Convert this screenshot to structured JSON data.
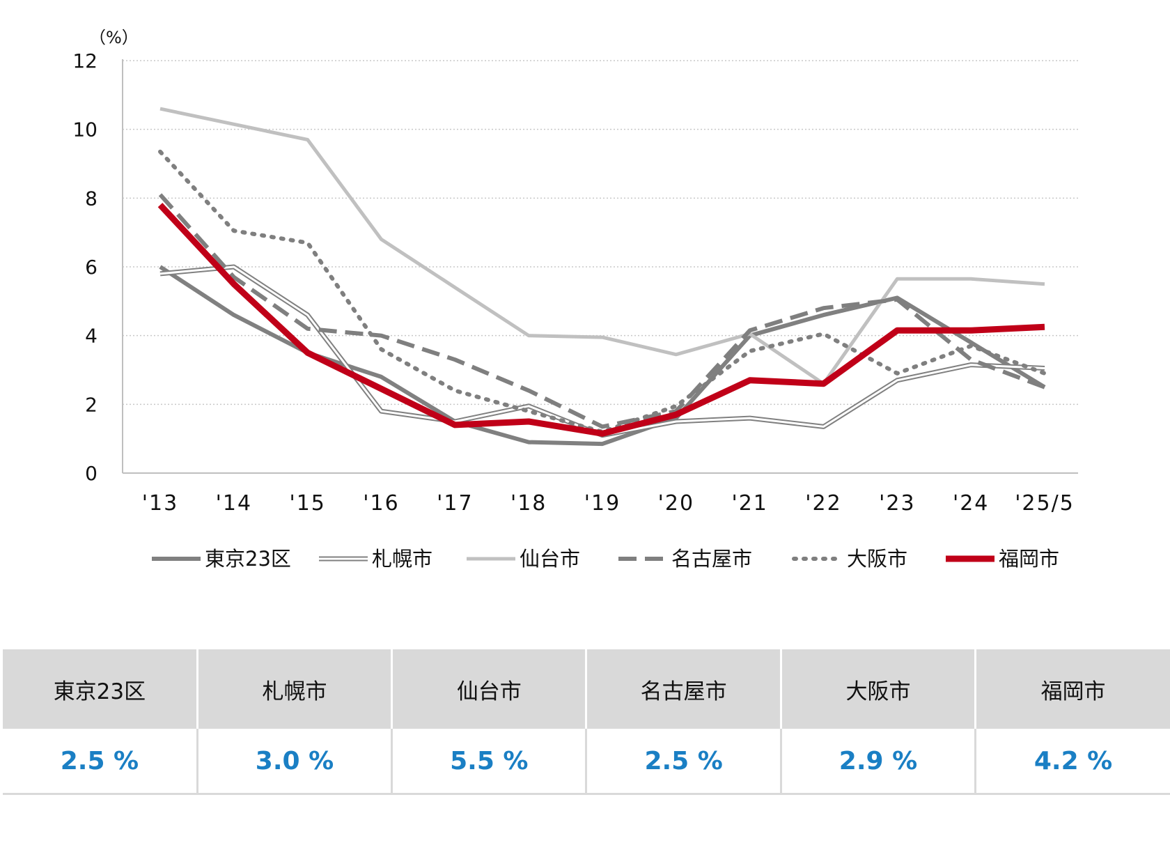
{
  "chart_data": {
    "type": "line",
    "unit_label": "（%）",
    "x": [
      "'13",
      "'14",
      "'15",
      "'16",
      "'17",
      "'18",
      "'19",
      "'20",
      "'21",
      "'22",
      "'23",
      "'24",
      "'25/5"
    ],
    "ylim": [
      0,
      12
    ],
    "yticks": [
      0,
      2,
      4,
      6,
      8,
      10,
      12
    ],
    "grid": "horizontal-dotted",
    "legend_position": "bottom",
    "series": [
      {
        "name": "東京23区",
        "color": "#808080",
        "style": "solid-thick",
        "values": [
          6.0,
          4.6,
          3.5,
          2.8,
          1.5,
          0.9,
          0.85,
          1.6,
          4.0,
          4.6,
          5.1,
          3.8,
          2.5
        ]
      },
      {
        "name": "札幌市",
        "color": "#808080",
        "style": "double",
        "values": [
          5.8,
          6.0,
          4.6,
          1.8,
          1.5,
          1.95,
          1.1,
          1.5,
          1.6,
          1.35,
          2.7,
          3.15,
          3.05
        ]
      },
      {
        "name": "仙台市",
        "color": "#c0c0c0",
        "style": "solid",
        "values": [
          10.6,
          10.15,
          9.7,
          6.8,
          5.4,
          4.0,
          3.95,
          3.45,
          4.05,
          2.6,
          5.65,
          5.65,
          5.5
        ]
      },
      {
        "name": "名古屋市",
        "color": "#7f7f7f",
        "style": "dashed",
        "values": [
          8.1,
          5.7,
          4.2,
          4.0,
          3.3,
          2.4,
          1.35,
          1.8,
          4.15,
          4.8,
          5.05,
          3.3,
          2.5
        ]
      },
      {
        "name": "大阪市",
        "color": "#7f7f7f",
        "style": "dotted",
        "values": [
          9.35,
          7.05,
          6.7,
          3.6,
          2.4,
          1.8,
          1.2,
          1.95,
          3.55,
          4.05,
          2.9,
          3.7,
          2.9
        ]
      },
      {
        "name": "福岡市",
        "color": "#c00018",
        "style": "solid-heavy",
        "values": [
          7.8,
          5.5,
          3.5,
          2.45,
          1.4,
          1.5,
          1.15,
          1.7,
          2.7,
          2.6,
          4.15,
          4.15,
          4.25
        ]
      }
    ]
  },
  "summary_table": {
    "headers": [
      "東京23区",
      "札幌市",
      "仙台市",
      "名古屋市",
      "大阪市",
      "福岡市"
    ],
    "values": [
      "2.5 %",
      "3.0 %",
      "5.5 %",
      "2.5 %",
      "2.9 %",
      "4.2 %"
    ]
  }
}
